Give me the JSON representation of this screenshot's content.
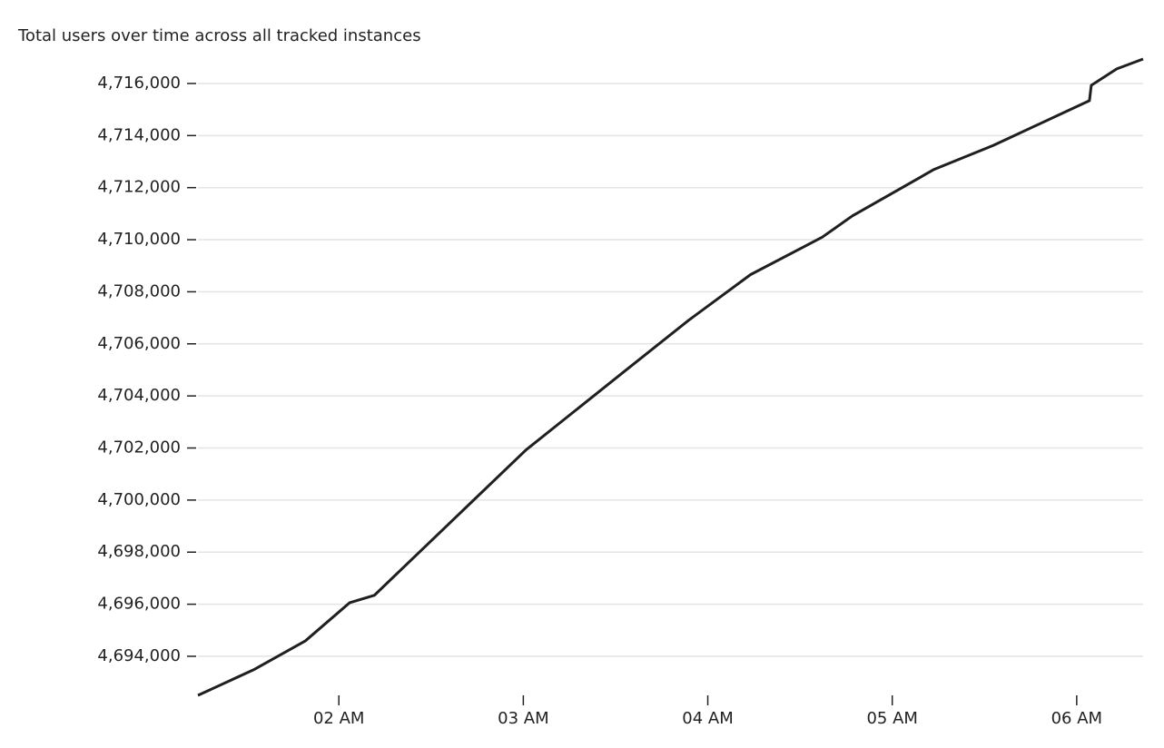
{
  "chart_data": {
    "type": "line",
    "title": "Total users over time across all tracked instances",
    "x": [
      1.236,
      1.537,
      1.818,
      2.059,
      2.192,
      3.015,
      3.542,
      3.897,
      4.232,
      4.621,
      4.783,
      5.227,
      5.547,
      6.069,
      6.079,
      6.217,
      6.36
    ],
    "series": [
      {
        "name": "Total users",
        "color": "#1f1f22",
        "values": [
          4692500,
          4693480,
          4694590,
          4696060,
          4696340,
          4701930,
          4704910,
          4706910,
          4708660,
          4710100,
          4710910,
          4712700,
          4713620,
          4715340,
          4715930,
          4716560,
          4716940
        ]
      }
    ],
    "xlim": [
      1.236,
      6.36
    ],
    "xticks": [
      {
        "value": 2,
        "label": "02 AM"
      },
      {
        "value": 3,
        "label": "03 AM"
      },
      {
        "value": 4,
        "label": "04 AM"
      },
      {
        "value": 5,
        "label": "05 AM"
      },
      {
        "value": 6,
        "label": "06 AM"
      }
    ],
    "ylim": [
      4692500,
      4716940
    ],
    "yticks": [
      {
        "value": 4694000,
        "label": "4,694,000"
      },
      {
        "value": 4696000,
        "label": "4,696,000"
      },
      {
        "value": 4698000,
        "label": "4,698,000"
      },
      {
        "value": 4700000,
        "label": "4,700,000"
      },
      {
        "value": 4702000,
        "label": "4,702,000"
      },
      {
        "value": 4704000,
        "label": "4,704,000"
      },
      {
        "value": 4706000,
        "label": "4,706,000"
      },
      {
        "value": 4708000,
        "label": "4,708,000"
      },
      {
        "value": 4710000,
        "label": "4,710,000"
      },
      {
        "value": 4712000,
        "label": "4,712,000"
      },
      {
        "value": 4714000,
        "label": "4,714,000"
      },
      {
        "value": 4716000,
        "label": "4,716,000"
      }
    ],
    "grid": true
  }
}
